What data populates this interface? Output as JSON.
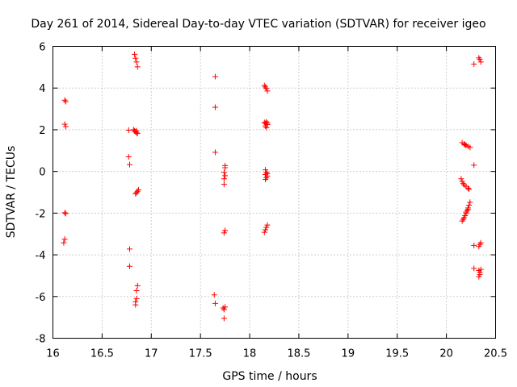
{
  "chart_data": {
    "type": "scatter",
    "title": "Day 261 of 2014, Sidereal Day-to-day VTEC variation (SDTVAR) for receiver igeo",
    "xlabel": "GPS time / hours",
    "ylabel": "SDTVAR / TECUs",
    "xlim": [
      16,
      20.5
    ],
    "ylim": [
      -8,
      6
    ],
    "x_ticks": [
      "16",
      "16.5",
      "17",
      "17.5",
      "18",
      "18.5",
      "19",
      "19.5",
      "20",
      "20.5"
    ],
    "y_ticks": [
      "-8",
      "-6",
      "-4",
      "-2",
      "0",
      "2",
      "4",
      "6"
    ],
    "grid": true,
    "marker": "+",
    "color": "#ff0000",
    "series": [
      {
        "name": "SDTVAR",
        "points": [
          [
            16.12,
            3.42
          ],
          [
            16.13,
            3.35
          ],
          [
            16.12,
            2.27
          ],
          [
            16.13,
            2.15
          ],
          [
            16.12,
            -1.98
          ],
          [
            16.13,
            -2.02
          ],
          [
            16.12,
            -3.25
          ],
          [
            16.11,
            -3.42
          ],
          [
            16.77,
            1.98
          ],
          [
            16.77,
            0.7
          ],
          [
            16.78,
            0.33
          ],
          [
            16.78,
            -3.72
          ],
          [
            16.78,
            -4.55
          ],
          [
            16.83,
            5.62
          ],
          [
            16.84,
            5.43
          ],
          [
            16.85,
            5.25
          ],
          [
            16.86,
            5.02
          ],
          [
            16.82,
            2.0
          ],
          [
            16.83,
            1.95
          ],
          [
            16.84,
            1.9
          ],
          [
            16.85,
            1.85
          ],
          [
            16.86,
            1.82
          ],
          [
            16.85,
            1.95
          ],
          [
            16.84,
            -1.07
          ],
          [
            16.85,
            -1.02
          ],
          [
            16.86,
            -0.95
          ],
          [
            16.87,
            -0.88
          ],
          [
            16.86,
            -5.48
          ],
          [
            16.85,
            -5.72
          ],
          [
            16.85,
            -6.1
          ],
          [
            16.84,
            -6.25
          ],
          [
            16.84,
            -6.4
          ],
          [
            17.65,
            4.55
          ],
          [
            17.65,
            3.08
          ],
          [
            17.65,
            0.92
          ],
          [
            17.64,
            -5.92
          ],
          [
            17.65,
            -6.33
          ],
          [
            17.75,
            0.28
          ],
          [
            17.75,
            0.18
          ],
          [
            17.74,
            -0.05
          ],
          [
            17.75,
            -0.2
          ],
          [
            17.74,
            -0.35
          ],
          [
            17.74,
            -0.62
          ],
          [
            17.75,
            -2.83
          ],
          [
            17.74,
            -2.95
          ],
          [
            17.75,
            -6.5
          ],
          [
            17.74,
            -6.62
          ],
          [
            17.73,
            -6.55
          ],
          [
            17.74,
            -7.05
          ],
          [
            18.15,
            4.12
          ],
          [
            18.16,
            4.05
          ],
          [
            18.17,
            3.98
          ],
          [
            18.18,
            3.86
          ],
          [
            18.15,
            2.35
          ],
          [
            18.16,
            2.3
          ],
          [
            18.17,
            2.38
          ],
          [
            18.18,
            2.25
          ],
          [
            18.16,
            2.18
          ],
          [
            18.17,
            2.1
          ],
          [
            18.18,
            2.32
          ],
          [
            18.16,
            0.08
          ],
          [
            18.17,
            -0.05
          ],
          [
            18.16,
            -0.15
          ],
          [
            18.18,
            -0.1
          ],
          [
            18.17,
            -0.3
          ],
          [
            18.16,
            -0.38
          ],
          [
            18.18,
            -0.22
          ],
          [
            18.18,
            -2.57
          ],
          [
            18.17,
            -2.68
          ],
          [
            18.16,
            -2.8
          ],
          [
            18.15,
            -2.92
          ],
          [
            20.16,
            1.38
          ],
          [
            20.18,
            1.32
          ],
          [
            20.2,
            1.25
          ],
          [
            20.22,
            1.2
          ],
          [
            20.24,
            1.15
          ],
          [
            20.19,
            1.28
          ],
          [
            20.15,
            -0.35
          ],
          [
            20.16,
            -0.48
          ],
          [
            20.17,
            -0.58
          ],
          [
            20.18,
            -0.65
          ],
          [
            20.2,
            -0.72
          ],
          [
            20.22,
            -0.8
          ],
          [
            20.23,
            -0.85
          ],
          [
            20.24,
            -1.48
          ],
          [
            20.23,
            -1.62
          ],
          [
            20.22,
            -1.75
          ],
          [
            20.21,
            -1.88
          ],
          [
            20.2,
            -2.02
          ],
          [
            20.19,
            -2.12
          ],
          [
            20.18,
            -2.22
          ],
          [
            20.17,
            -2.3
          ],
          [
            20.16,
            -2.38
          ],
          [
            20.22,
            -1.82
          ],
          [
            20.2,
            -1.95
          ],
          [
            20.33,
            5.45
          ],
          [
            20.34,
            5.38
          ],
          [
            20.35,
            5.25
          ],
          [
            20.28,
            5.15
          ],
          [
            20.28,
            0.3
          ],
          [
            20.28,
            -3.55
          ],
          [
            20.33,
            -3.6
          ],
          [
            20.34,
            -3.5
          ],
          [
            20.35,
            -3.42
          ],
          [
            20.28,
            -4.65
          ],
          [
            20.33,
            -4.75
          ],
          [
            20.34,
            -4.85
          ],
          [
            20.35,
            -4.7
          ],
          [
            20.34,
            -4.95
          ],
          [
            20.33,
            -5.05
          ]
        ]
      }
    ]
  }
}
